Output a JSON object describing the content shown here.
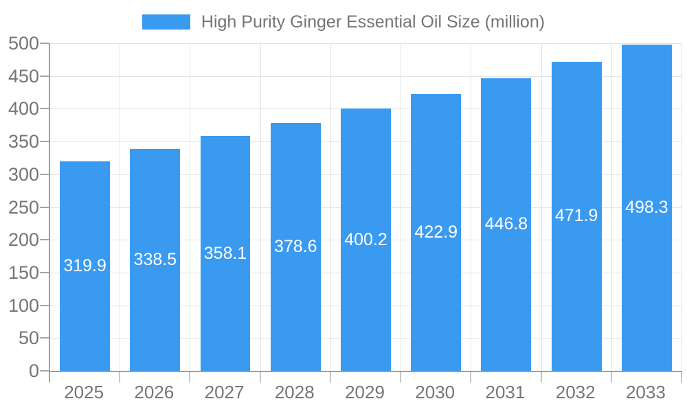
{
  "legend": {
    "label": "High Purity Ginger Essential Oil Size (million)"
  },
  "colors": {
    "bar": "#3A9AEF",
    "axis": "#9E9E9E",
    "grid": "#E3E3E3",
    "tick": "#A6A6A6",
    "xtick": "#C6C6C6",
    "text": "#757575",
    "bar_label": "#FFFFFF"
  },
  "chart_data": {
    "type": "bar",
    "title": "High Purity Ginger Essential Oil Size (million)",
    "categories": [
      "2025",
      "2026",
      "2027",
      "2028",
      "2029",
      "2030",
      "2031",
      "2032",
      "2033"
    ],
    "values": [
      319.9,
      338.5,
      358.1,
      378.6,
      400.2,
      422.9,
      446.8,
      471.9,
      498.3
    ],
    "value_labels": [
      "319.9",
      "338.5",
      "358.1",
      "378.6",
      "400.2",
      "422.9",
      "446.8",
      "471.9",
      "498.3"
    ],
    "xlabel": "",
    "ylabel": "",
    "ylim": [
      0,
      500
    ],
    "yticks": [
      0,
      50,
      100,
      150,
      200,
      250,
      300,
      350,
      400,
      450,
      500
    ],
    "grid": true,
    "legend_position": "top",
    "bar_labels_inside": true
  }
}
